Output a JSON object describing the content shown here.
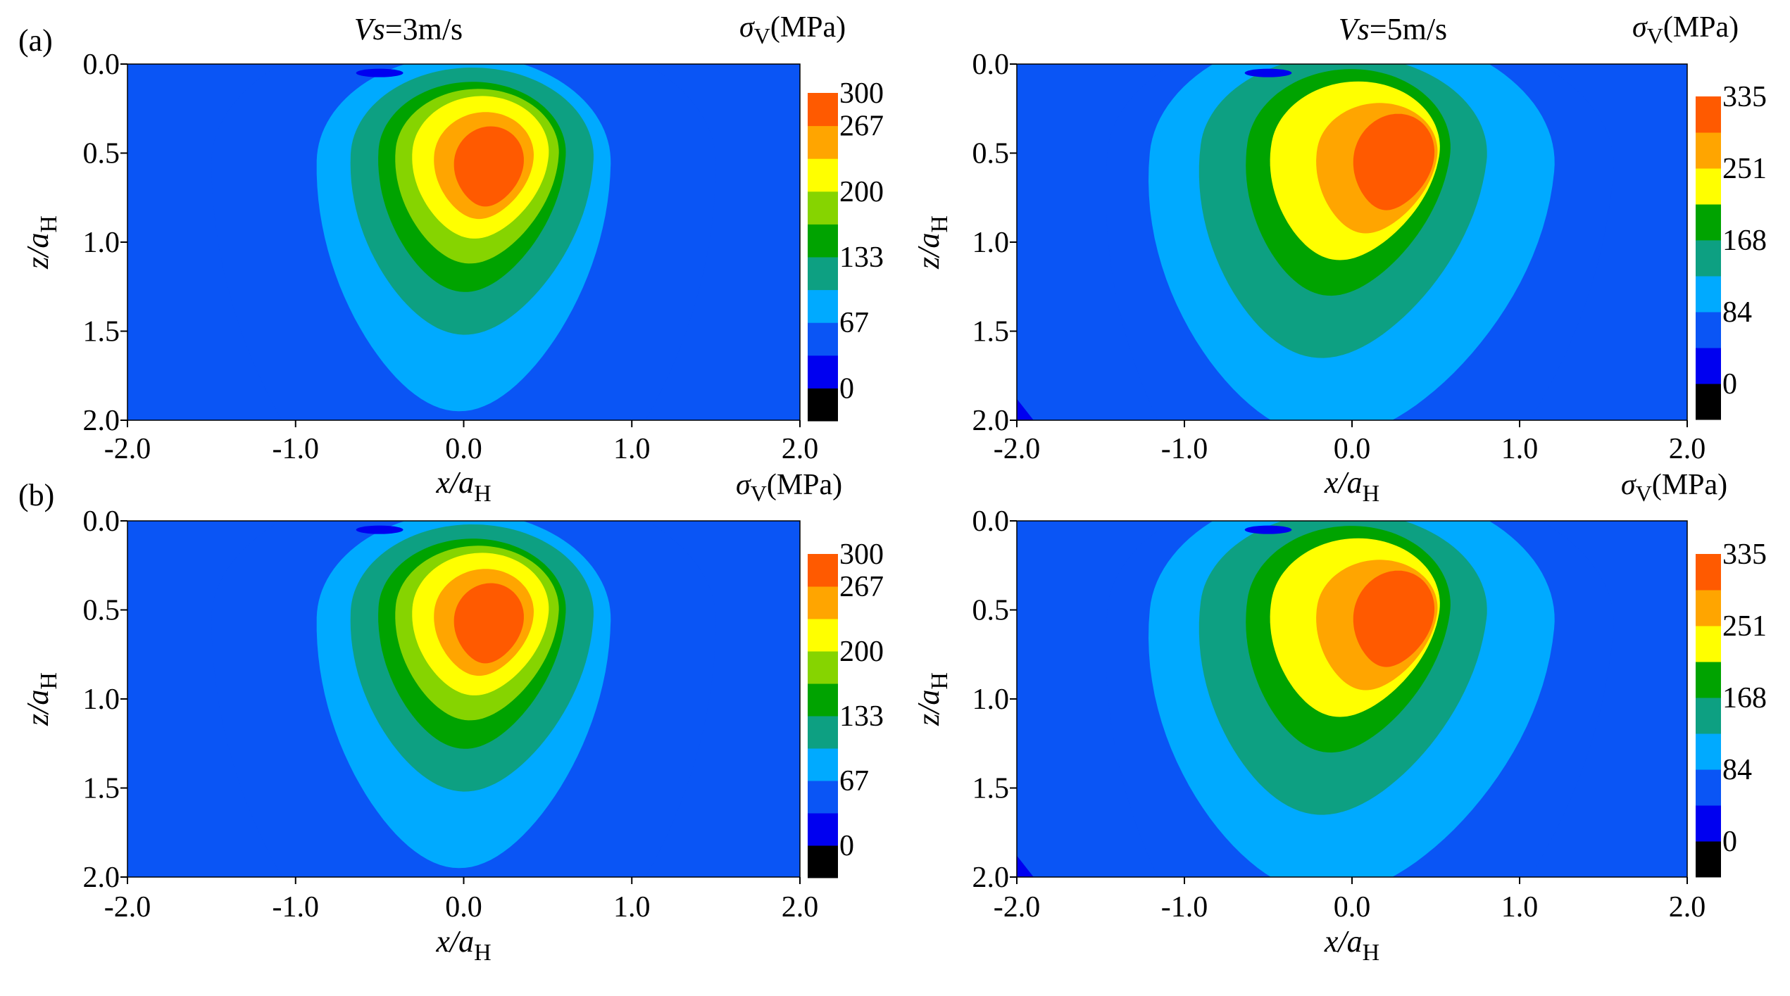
{
  "figure": {
    "row_labels": [
      "(a)",
      "(b)"
    ]
  },
  "colors": {
    "background": "#ffffff",
    "axis": "#000000",
    "levels_3ms": [
      "#000000",
      "#0000f0",
      "#0a55f5",
      "#00aaff",
      "#0da082",
      "#00a300",
      "#86d400",
      "#ffff00",
      "#ffa500",
      "#ff5a00"
    ],
    "levels_5ms": [
      "#000000",
      "#0000f0",
      "#0a55f5",
      "#00aaff",
      "#0da082",
      "#00a300",
      "#ffff00",
      "#ffa500",
      "#ff5a00"
    ]
  },
  "chart_data": [
    {
      "id": "a-left",
      "type": "contour",
      "row": "(a)",
      "title": "Vs=3m/s",
      "title_italic": "Vs",
      "title_rest": "=3m/s",
      "colorbar_title_sym": "σ",
      "colorbar_title_sub": "V",
      "colorbar_title_unit": "(MPa)",
      "xlabel_main": "x",
      "xlabel_rest": "/a",
      "xlabel_sub": "H",
      "ylabel_main": "z",
      "ylabel_rest": "/a",
      "ylabel_sub": "H",
      "xlim": [
        -2.0,
        2.0
      ],
      "ylim": [
        0.0,
        2.0
      ],
      "y_inverted": true,
      "xticks": [
        "-2.0",
        "-1.0",
        "0.0",
        "1.0",
        "2.0"
      ],
      "yticks": [
        "0.0",
        "0.5",
        "1.0",
        "1.5",
        "2.0"
      ],
      "colorbar_ticks": [
        "300",
        "267",
        "200",
        "133",
        "67",
        "0"
      ],
      "peak": {
        "x": 0.1,
        "z": 0.55,
        "value": 300
      },
      "contour_levels": [
        0,
        33,
        67,
        100,
        133,
        167,
        200,
        233,
        267,
        300
      ]
    },
    {
      "id": "a-right",
      "type": "contour",
      "row": "(a)",
      "title": "Vs=5m/s",
      "title_italic": "Vs",
      "title_rest": "=5m/s",
      "colorbar_title_sym": "σ",
      "colorbar_title_sub": "V",
      "colorbar_title_unit": "(MPa)",
      "xlabel_main": "x",
      "xlabel_rest": "/a",
      "xlabel_sub": "H",
      "ylabel_main": "z",
      "ylabel_rest": "/a",
      "ylabel_sub": "H",
      "xlim": [
        -2.0,
        2.0
      ],
      "ylim": [
        0.0,
        2.0
      ],
      "y_inverted": true,
      "xticks": [
        "-2.0",
        "-1.0",
        "0.0",
        "1.0",
        "2.0"
      ],
      "yticks": [
        "0.0",
        "0.5",
        "1.0",
        "1.5",
        "2.0"
      ],
      "colorbar_ticks": [
        "335",
        "251",
        "168",
        "84",
        "0"
      ],
      "peak": {
        "x": 0.15,
        "z": 0.55,
        "value": 335
      },
      "contour_levels": [
        0,
        42,
        84,
        126,
        168,
        209,
        251,
        293,
        335
      ]
    },
    {
      "id": "b-left",
      "type": "contour",
      "row": "(b)",
      "title": "",
      "title_italic": "",
      "title_rest": "",
      "colorbar_title_sym": "σ",
      "colorbar_title_sub": "V",
      "colorbar_title_unit": "(MPa)",
      "xlabel_main": "x",
      "xlabel_rest": "/a",
      "xlabel_sub": "H",
      "ylabel_main": "z",
      "ylabel_rest": "/a",
      "ylabel_sub": "H",
      "xlim": [
        -2.0,
        2.0
      ],
      "ylim": [
        0.0,
        2.0
      ],
      "y_inverted": true,
      "xticks": [
        "-2.0",
        "-1.0",
        "0.0",
        "1.0",
        "2.0"
      ],
      "yticks": [
        "0.0",
        "0.5",
        "1.0",
        "1.5",
        "2.0"
      ],
      "colorbar_ticks": [
        "300",
        "267",
        "200",
        "133",
        "67",
        "0"
      ],
      "peak": {
        "x": 0.1,
        "z": 0.55,
        "value": 300
      },
      "contour_levels": [
        0,
        33,
        67,
        100,
        133,
        167,
        200,
        233,
        267,
        300
      ]
    },
    {
      "id": "b-right",
      "type": "contour",
      "row": "(b)",
      "title": "",
      "title_italic": "",
      "title_rest": "",
      "colorbar_title_sym": "σ",
      "colorbar_title_sub": "V",
      "colorbar_title_unit": "(MPa)",
      "xlabel_main": "x",
      "xlabel_rest": "/a",
      "xlabel_sub": "H",
      "ylabel_main": "z",
      "ylabel_rest": "/a",
      "ylabel_sub": "H",
      "xlim": [
        -2.0,
        2.0
      ],
      "ylim": [
        0.0,
        2.0
      ],
      "y_inverted": true,
      "xticks": [
        "-2.0",
        "-1.0",
        "0.0",
        "1.0",
        "2.0"
      ],
      "yticks": [
        "0.0",
        "0.5",
        "1.0",
        "1.5",
        "2.0"
      ],
      "colorbar_ticks": [
        "335",
        "251",
        "168",
        "84",
        "0"
      ],
      "peak": {
        "x": 0.15,
        "z": 0.55,
        "value": 335
      },
      "contour_levels": [
        0,
        42,
        84,
        126,
        168,
        209,
        251,
        293,
        335
      ]
    }
  ]
}
